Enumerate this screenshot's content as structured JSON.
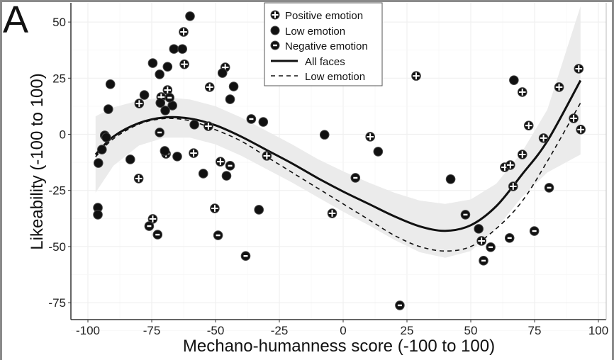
{
  "panel_label": "A",
  "chart_data": {
    "type": "scatter",
    "xlabel": "Mechano-humanness score (-100 to 100)",
    "ylabel": "Likeability (-100 to 100)",
    "xlim": [
      -106,
      103
    ],
    "ylim": [
      -84,
      58
    ],
    "xticks": [
      -100,
      -75,
      -50,
      -25,
      0,
      25,
      50,
      75,
      100
    ],
    "yticks": [
      50,
      25,
      0,
      -25,
      -50,
      -75
    ],
    "xtick_labels": [
      "-100",
      "-75",
      "-50",
      "-25",
      "0",
      "25",
      "50",
      "75",
      "100"
    ],
    "ytick_labels": [
      "50",
      "25",
      "0",
      "-25",
      "-50",
      "-75"
    ],
    "grid": true,
    "legend_placement": "top-center",
    "legend": [
      "Positive emotion",
      "Low emotion",
      "Negative emotion",
      "All faces",
      "Low emotion"
    ],
    "series": [
      {
        "name": "Positive emotion",
        "marker": "plus-circle",
        "points": [
          [
            -62.5,
            45.6
          ],
          [
            -62.2,
            31.2
          ],
          [
            -46.2,
            29.8
          ],
          [
            -52.3,
            21.0
          ],
          [
            -68.8,
            19.7
          ],
          [
            -71.3,
            16.6
          ],
          [
            -79.9,
            13.7
          ],
          [
            -52.8,
            3.6
          ],
          [
            -29.9,
            -9.6
          ],
          [
            -69.4,
            -8.7
          ],
          [
            -58.6,
            -8.4
          ],
          [
            -48.1,
            -12.2
          ],
          [
            -80.1,
            -19.7
          ],
          [
            -74.6,
            -37.7
          ],
          [
            -50.3,
            -33.0
          ],
          [
            10.6,
            -1.1
          ],
          [
            -4.3,
            -35.2
          ],
          [
            72.7,
            3.9
          ],
          [
            78.5,
            -1.7
          ],
          [
            70.2,
            -9.0
          ],
          [
            63.3,
            -14.7
          ],
          [
            65.5,
            -13.7
          ],
          [
            66.6,
            -23.2
          ],
          [
            54.2,
            -47.5
          ],
          [
            90.3,
            7.1
          ],
          [
            93.1,
            2.1
          ],
          [
            28.6,
            26.0
          ],
          [
            84.6,
            21.0
          ],
          [
            70.2,
            18.8
          ],
          [
            92.3,
            29.2
          ]
        ]
      },
      {
        "name": "Low emotion",
        "marker": "filled-circle",
        "points": [
          [
            -60.0,
            52.6
          ],
          [
            -66.3,
            38.0
          ],
          [
            -63.0,
            38.0
          ],
          [
            -74.6,
            31.7
          ],
          [
            -68.8,
            30.1
          ],
          [
            -71.9,
            26.7
          ],
          [
            -47.3,
            27.3
          ],
          [
            -42.9,
            21.3
          ],
          [
            -91.2,
            22.3
          ],
          [
            -44.3,
            15.6
          ],
          [
            -77.9,
            17.5
          ],
          [
            -92.0,
            11.2
          ],
          [
            -71.6,
            14.0
          ],
          [
            -66.9,
            12.8
          ],
          [
            -69.7,
            10.6
          ],
          [
            -58.3,
            4.3
          ],
          [
            -31.3,
            5.5
          ],
          [
            -93.4,
            -0.5
          ],
          [
            -92.8,
            -1.4
          ],
          [
            -94.5,
            -6.8
          ],
          [
            -95.9,
            -12.8
          ],
          [
            -83.4,
            -11.2
          ],
          [
            -69.9,
            -7.4
          ],
          [
            -65.0,
            -9.9
          ],
          [
            -54.8,
            -17.5
          ],
          [
            -45.7,
            -18.5
          ],
          [
            -96.1,
            -32.7
          ],
          [
            -96.1,
            -35.8
          ],
          [
            -33.0,
            -33.6
          ],
          [
            -7.3,
            -0.2
          ],
          [
            13.7,
            -7.7
          ],
          [
            42.1,
            -20.0
          ],
          [
            53.1,
            -42.1
          ],
          [
            66.9,
            24.1
          ]
        ]
      },
      {
        "name": "Negative emotion",
        "marker": "minus-circle",
        "points": [
          [
            -68.0,
            16.3
          ],
          [
            -71.9,
            0.8
          ],
          [
            -36.0,
            6.8
          ],
          [
            -44.3,
            -14.0
          ],
          [
            -76.0,
            -40.9
          ],
          [
            -72.7,
            -44.7
          ],
          [
            -49.0,
            -45.0
          ],
          [
            -38.2,
            -54.2
          ],
          [
            4.8,
            -19.4
          ],
          [
            47.9,
            -35.8
          ],
          [
            57.8,
            -50.3
          ],
          [
            55.0,
            -56.3
          ],
          [
            65.2,
            -46.2
          ],
          [
            74.9,
            -43.1
          ],
          [
            80.7,
            -23.8
          ],
          [
            22.2,
            -76.2
          ]
        ]
      }
    ],
    "fits": [
      {
        "name": "All faces",
        "style": "solid",
        "x": [
          -97,
          -90,
          -80,
          -70,
          -60,
          -50,
          -40,
          -30,
          -20,
          -10,
          0,
          10,
          20,
          30,
          40,
          50,
          60,
          70,
          80,
          93
        ],
        "y": [
          -9,
          -1,
          5,
          7.5,
          7,
          4,
          -1,
          -7,
          -13,
          -19.5,
          -25.5,
          -31,
          -36.5,
          -41,
          -43,
          -40.5,
          -32,
          -18,
          -3,
          24
        ],
        "band_upper": [
          8,
          12,
          15,
          16.5,
          15.5,
          12.5,
          7.5,
          1.5,
          -4.5,
          -11,
          -16.5,
          -21.5,
          -26,
          -29.5,
          -31,
          -29,
          -22,
          -8,
          11,
          57
        ],
        "band_lower": [
          -26,
          -14,
          -5,
          -1.5,
          -1.5,
          -4.5,
          -9.5,
          -15.5,
          -21.5,
          -28,
          -34.5,
          -40.5,
          -47,
          -52.5,
          -55,
          -52,
          -42,
          -28,
          -17,
          -9
        ]
      },
      {
        "name": "Low emotion",
        "style": "dashed",
        "x": [
          -97,
          -90,
          -80,
          -70,
          -60,
          -50,
          -40,
          -30,
          -20,
          -10,
          0,
          10,
          20,
          30,
          40,
          50,
          60,
          70,
          80,
          93
        ],
        "y": [
          -10,
          -2,
          4.5,
          7,
          6,
          2,
          -3,
          -10,
          -17,
          -24,
          -31,
          -38,
          -45,
          -50,
          -52,
          -50,
          -42,
          -30,
          -12,
          14
        ]
      }
    ],
    "colors": {
      "points": "#111111",
      "band": "#ebebeb",
      "grid": "#f0f0f0"
    }
  }
}
